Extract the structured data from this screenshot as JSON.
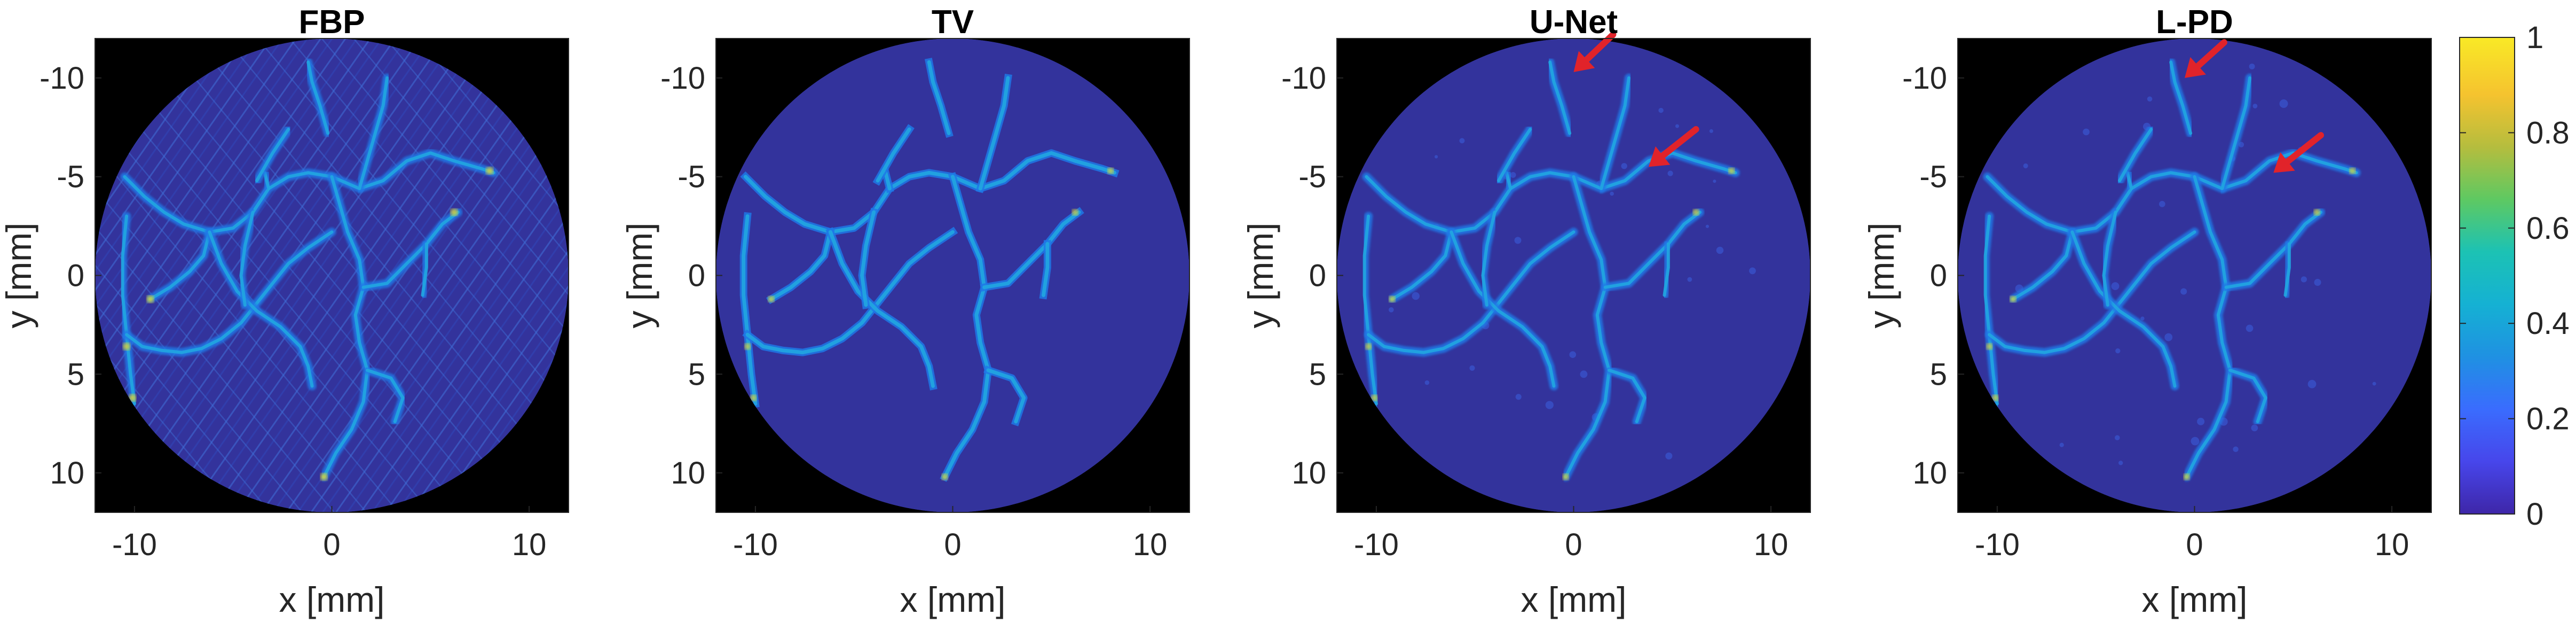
{
  "chart_data": [
    {
      "type": "heatmap",
      "title": "FBP",
      "xlabel": "x [mm]",
      "ylabel": "y [mm]",
      "xlim": [
        -12,
        12
      ],
      "ylim": [
        -12,
        12
      ],
      "y_reversed": true,
      "xticks": [
        -10,
        0,
        10
      ],
      "yticks": [
        -10,
        -5,
        0,
        5,
        10
      ],
      "xtick_labels": [
        "-10",
        "0",
        "10"
      ],
      "ytick_labels": [
        "-10",
        "-5",
        "0",
        "5",
        "10"
      ],
      "arrows": []
    },
    {
      "type": "heatmap",
      "title": "TV",
      "xlabel": "x [mm]",
      "ylabel": "y [mm]",
      "xlim": [
        -12,
        12
      ],
      "ylim": [
        -12,
        12
      ],
      "y_reversed": true,
      "xticks": [
        -10,
        0,
        10
      ],
      "yticks": [
        -10,
        -5,
        0,
        5,
        10
      ],
      "xtick_labels": [
        "-10",
        "0",
        "10"
      ],
      "ytick_labels": [
        "-10",
        "-5",
        "0",
        "5",
        "10"
      ],
      "arrows": []
    },
    {
      "type": "heatmap",
      "title": "U-Net",
      "xlabel": "x [mm]",
      "ylabel": "y [mm]",
      "xlim": [
        -12,
        12
      ],
      "ylim": [
        -12,
        12
      ],
      "y_reversed": true,
      "xticks": [
        -10,
        0,
        10
      ],
      "yticks": [
        -10,
        -5,
        0,
        5,
        10
      ],
      "xtick_labels": [
        "-10",
        "0",
        "10"
      ],
      "ytick_labels": [
        "-10",
        "-5",
        "0",
        "5",
        "10"
      ],
      "arrows": [
        {
          "tip": [
            0,
            -10.3
          ],
          "tail": [
            2,
            -12.2
          ]
        },
        {
          "tip": [
            3.8,
            -5.5
          ],
          "tail": [
            6.2,
            -7.4
          ]
        }
      ]
    },
    {
      "type": "heatmap",
      "title": "L-PD",
      "xlabel": "x [mm]",
      "ylabel": "y [mm]",
      "xlim": [
        -12,
        12
      ],
      "ylim": [
        -12,
        12
      ],
      "y_reversed": true,
      "xticks": [
        -10,
        0,
        10
      ],
      "yticks": [
        -10,
        -5,
        0,
        5,
        10
      ],
      "xtick_labels": [
        "-10",
        "0",
        "10"
      ],
      "ytick_labels": [
        "-10",
        "-5",
        "0",
        "5",
        "10"
      ],
      "arrows": [
        {
          "tip": [
            -0.5,
            -10.0
          ],
          "tail": [
            1.5,
            -11.8
          ]
        },
        {
          "tip": [
            4,
            -5.2
          ],
          "tail": [
            6.4,
            -7.1
          ]
        }
      ]
    }
  ],
  "colorbar": {
    "range": [
      0,
      1
    ],
    "ticks": [
      0,
      0.2,
      0.4,
      0.6,
      0.8,
      1
    ],
    "tick_labels": [
      "0",
      "0.2",
      "0.4",
      "0.6",
      "0.8",
      "1"
    ],
    "colormap": "parula",
    "colors": [
      "#3e26a8",
      "#4746eb",
      "#3a6cfe",
      "#1f91e2",
      "#15b1d3",
      "#1cc2b4",
      "#5ec962",
      "#b5bd3e",
      "#f5c32f",
      "#f9e926"
    ]
  },
  "background_color": "#000000",
  "arrow_color": "#e1232a",
  "vessel_color": "#21a6e0",
  "hotspot_color": "#d8d33a",
  "disk_color": "#33339c"
}
